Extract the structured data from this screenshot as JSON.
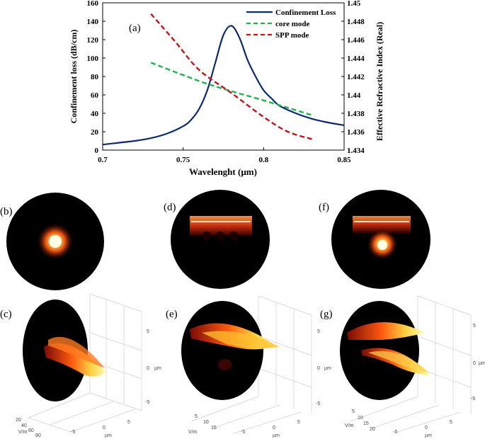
{
  "chart_data": {
    "type": "line",
    "panel_label": "(a)",
    "xlabel": "Wavelenght (µm)",
    "ylabel_left": "Confinement loss (dB/cm)",
    "ylabel_right": "Effective Refractive Index (Real)",
    "xlim": [
      0.7,
      0.85
    ],
    "ylim_left": [
      0,
      160
    ],
    "ylim_right": [
      1.434,
      1.45
    ],
    "x_ticks": [
      "0.7",
      "0.75",
      "0.8",
      "0.85"
    ],
    "y_ticks_left": [
      "0",
      "20",
      "40",
      "60",
      "80",
      "100",
      "120",
      "140",
      "160"
    ],
    "y_ticks_right": [
      "1.434",
      "1.436",
      "1.438",
      "1.44",
      "1.442",
      "1.444",
      "1.446",
      "1.448",
      "1.45"
    ],
    "series": [
      {
        "name": "Confinement Loss",
        "axis": "left",
        "color": "#0b2a73",
        "dash": "solid",
        "x": [
          0.7,
          0.71,
          0.72,
          0.73,
          0.74,
          0.75,
          0.755,
          0.76,
          0.765,
          0.77,
          0.775,
          0.78,
          0.785,
          0.79,
          0.795,
          0.8,
          0.805,
          0.81,
          0.82,
          0.83,
          0.84,
          0.85
        ],
        "y": [
          6,
          8,
          10,
          13,
          18,
          26,
          33,
          45,
          65,
          95,
          125,
          135,
          122,
          98,
          80,
          65,
          56,
          48,
          40,
          34,
          30,
          27
        ]
      },
      {
        "name": "core mode",
        "axis": "right",
        "color": "#22b14c",
        "dash": "dashed",
        "x": [
          0.73,
          0.76,
          0.78,
          0.8,
          0.83
        ],
        "y": [
          1.4435,
          1.4415,
          1.4404,
          1.4394,
          1.4378
        ]
      },
      {
        "name": "SPP mode",
        "axis": "right",
        "color": "#c0141a",
        "dash": "dashed",
        "x": [
          0.73,
          0.745,
          0.76,
          0.78,
          0.8,
          0.815,
          0.83
        ],
        "y": [
          1.4488,
          1.4458,
          1.4427,
          1.4402,
          1.4376,
          1.436,
          1.4352
        ]
      }
    ],
    "legend": {
      "placement": "top-right",
      "entries": [
        "Confinement Loss",
        "core mode",
        "SPP mode"
      ]
    },
    "field_panels": {
      "top_labels": [
        "(b)",
        "(d)",
        "(f)"
      ],
      "bottom_labels": [
        "(c)",
        "(e)",
        "(g)"
      ],
      "axis_tick_labels": [
        "5",
        "0",
        "µm",
        "-5"
      ],
      "vm_label": "V/m",
      "c_vm_ticks": [
        "20",
        "40",
        "60",
        "80"
      ],
      "e_vm_ticks": [
        "5",
        "10",
        "15"
      ],
      "g_vm_ticks": [
        "5",
        "10",
        "15",
        "20"
      ],
      "x_ticks": [
        "-5",
        "0",
        "5"
      ],
      "x_unit": "µm"
    }
  }
}
